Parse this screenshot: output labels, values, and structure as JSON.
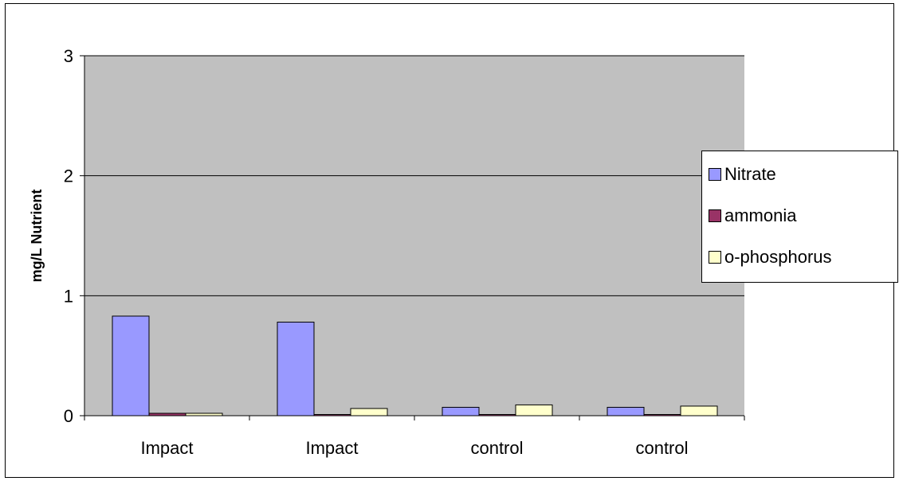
{
  "chart_data": {
    "type": "bar",
    "categories": [
      "Impact",
      "Impact",
      "control",
      "control"
    ],
    "series": [
      {
        "name": "Nitrate",
        "color": "#9999ff",
        "values": [
          0.83,
          0.78,
          0.07,
          0.07
        ]
      },
      {
        "name": "ammonia",
        "color": "#993366",
        "values": [
          0.02,
          0.01,
          0.01,
          0.01
        ]
      },
      {
        "name": "o-phosphorus",
        "color": "#ffffcc",
        "values": [
          0.02,
          0.06,
          0.09,
          0.08
        ]
      }
    ],
    "ylabel": "mg/L Nutrient",
    "ylim": [
      0,
      3
    ],
    "yticks": [
      "0",
      "1",
      "2",
      "3"
    ],
    "grid": true,
    "legend": "right",
    "plot_background": "#c0c0c0"
  }
}
